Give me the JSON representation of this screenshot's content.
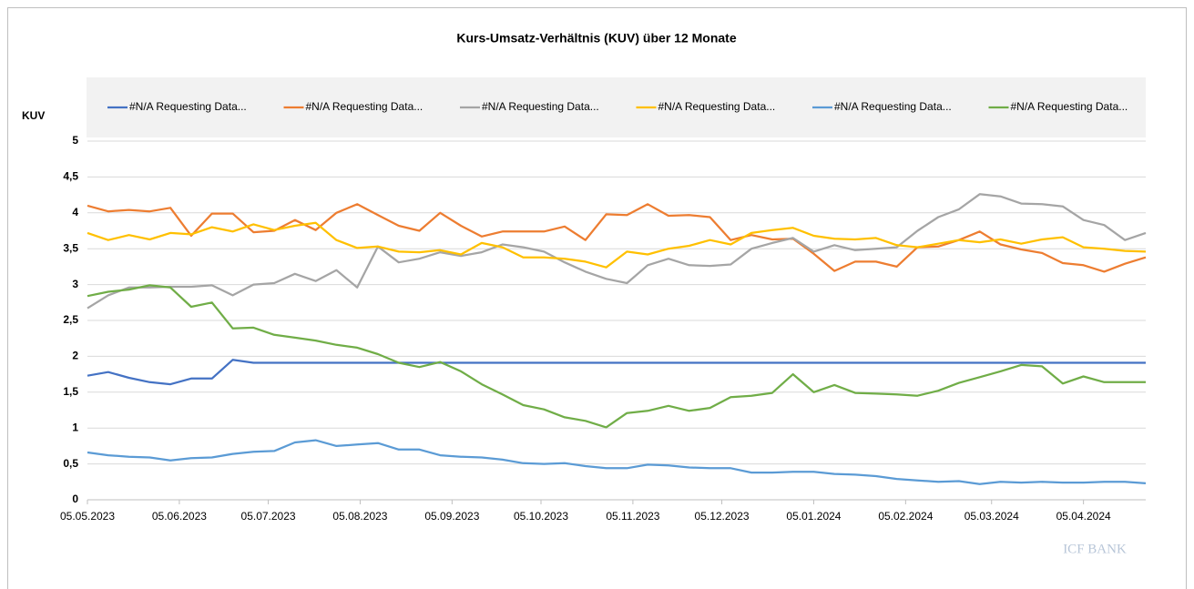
{
  "chart_data": {
    "type": "line",
    "title": "Kurs-Umsatz-Verhältnis (KUV) über 12 Monate",
    "y_label": "KUV",
    "logo": "ICF BANK",
    "x": [
      "2023-05-05",
      "2023-05-12",
      "2023-05-19",
      "2023-05-26",
      "2023-06-02",
      "2023-06-09",
      "2023-06-16",
      "2023-06-23",
      "2023-06-30",
      "2023-07-07",
      "2023-07-14",
      "2023-07-21",
      "2023-07-28",
      "2023-08-04",
      "2023-08-11",
      "2023-08-18",
      "2023-08-25",
      "2023-09-01",
      "2023-09-08",
      "2023-09-15",
      "2023-09-22",
      "2023-09-29",
      "2023-10-06",
      "2023-10-13",
      "2023-10-20",
      "2023-10-27",
      "2023-11-03",
      "2023-11-10",
      "2023-11-17",
      "2023-11-24",
      "2023-12-01",
      "2023-12-08",
      "2023-12-15",
      "2023-12-22",
      "2023-12-29",
      "2024-01-05",
      "2024-01-12",
      "2024-01-19",
      "2024-01-26",
      "2024-02-02",
      "2024-02-09",
      "2024-02-16",
      "2024-02-23",
      "2024-03-01",
      "2024-03-08",
      "2024-03-15",
      "2024-03-22",
      "2024-03-29",
      "2024-04-05",
      "2024-04-12",
      "2024-04-19",
      "2024-04-26"
    ],
    "xlim": [
      "2023-05-05",
      "2024-04-26"
    ],
    "xticks": [
      {
        "value": "2023-05-05",
        "label": "05.05.2023"
      },
      {
        "value": "2023-06-05",
        "label": "05.06.2023"
      },
      {
        "value": "2023-07-05",
        "label": "05.07.2023"
      },
      {
        "value": "2023-08-05",
        "label": "05.08.2023"
      },
      {
        "value": "2023-09-05",
        "label": "05.09.2023"
      },
      {
        "value": "2023-10-05",
        "label": "05.10.2023"
      },
      {
        "value": "2023-11-05",
        "label": "05.11.2023"
      },
      {
        "value": "2023-12-05",
        "label": "05.12.2023"
      },
      {
        "value": "2024-01-05",
        "label": "05.01.2024"
      },
      {
        "value": "2024-02-05",
        "label": "05.02.2024"
      },
      {
        "value": "2024-03-05",
        "label": "05.03.2024"
      },
      {
        "value": "2024-04-05",
        "label": "05.04.2024"
      }
    ],
    "ylim": [
      0,
      5
    ],
    "yticks": [
      0,
      {
        "value": 0.5,
        "label": "0,5"
      },
      1,
      {
        "value": 1.5,
        "label": "1,5"
      },
      2,
      {
        "value": 2.5,
        "label": "2,5"
      },
      3,
      {
        "value": 3.5,
        "label": "3,5"
      },
      4,
      {
        "value": 4.5,
        "label": "4,5"
      },
      5
    ],
    "grid": true,
    "legend": "top",
    "series": [
      {
        "name": "#N/A Requesting Data...",
        "color": "#4472c4",
        "values": [
          1.73,
          1.78,
          1.7,
          1.64,
          1.61,
          1.69,
          1.69,
          1.95,
          1.91,
          1.91,
          1.91,
          1.91,
          1.91,
          1.91,
          1.91,
          1.91,
          1.91,
          1.91,
          1.91,
          1.91,
          1.91,
          1.91,
          1.91,
          1.91,
          1.91,
          1.91,
          1.91,
          1.91,
          1.91,
          1.91,
          1.91,
          1.91,
          1.91,
          1.91,
          1.91,
          1.91,
          1.91,
          1.91,
          1.91,
          1.91,
          1.91,
          1.91,
          1.91,
          1.91,
          1.91,
          1.91,
          1.91,
          1.91,
          1.91,
          1.91,
          1.91,
          1.91
        ]
      },
      {
        "name": "#N/A Requesting Data...",
        "color": "#ed7d31",
        "values": [
          4.1,
          4.02,
          4.04,
          4.02,
          4.07,
          3.68,
          3.99,
          3.99,
          3.73,
          3.75,
          3.9,
          3.76,
          4.0,
          4.12,
          3.97,
          3.82,
          3.75,
          4.0,
          3.82,
          3.67,
          3.74,
          3.74,
          3.74,
          3.81,
          3.62,
          3.98,
          3.97,
          4.12,
          3.96,
          3.97,
          3.94,
          3.62,
          3.69,
          3.63,
          3.64,
          3.43,
          3.19,
          3.32,
          3.32,
          3.25,
          3.52,
          3.53,
          3.62,
          3.74,
          3.56,
          3.49,
          3.44,
          3.3,
          3.27,
          3.18,
          3.29,
          3.38
        ]
      },
      {
        "name": "#N/A Requesting Data...",
        "color": "#a5a5a5",
        "values": [
          2.67,
          2.85,
          2.96,
          2.96,
          2.97,
          2.97,
          2.99,
          2.85,
          3.0,
          3.02,
          3.15,
          3.05,
          3.2,
          2.96,
          3.53,
          3.31,
          3.36,
          3.45,
          3.4,
          3.45,
          3.56,
          3.52,
          3.46,
          3.31,
          3.18,
          3.08,
          3.02,
          3.27,
          3.36,
          3.27,
          3.26,
          3.28,
          3.5,
          3.58,
          3.65,
          3.46,
          3.55,
          3.48,
          3.5,
          3.52,
          3.75,
          3.94,
          4.05,
          4.26,
          4.23,
          4.13,
          4.12,
          4.09,
          3.9,
          3.83,
          3.62,
          3.72
        ]
      },
      {
        "name": "#N/A Requesting Data...",
        "color": "#ffc000",
        "values": [
          3.72,
          3.62,
          3.69,
          3.63,
          3.72,
          3.7,
          3.8,
          3.74,
          3.84,
          3.76,
          3.82,
          3.86,
          3.62,
          3.51,
          3.53,
          3.46,
          3.45,
          3.48,
          3.42,
          3.58,
          3.52,
          3.38,
          3.38,
          3.36,
          3.32,
          3.24,
          3.46,
          3.42,
          3.5,
          3.54,
          3.62,
          3.56,
          3.72,
          3.76,
          3.79,
          3.68,
          3.64,
          3.63,
          3.65,
          3.55,
          3.52,
          3.57,
          3.62,
          3.59,
          3.63,
          3.57,
          3.63,
          3.66,
          3.52,
          3.5,
          3.47,
          3.46
        ]
      },
      {
        "name": "#N/A Requesting Data...",
        "color": "#5b9bd5",
        "values": [
          0.66,
          0.62,
          0.6,
          0.59,
          0.55,
          0.58,
          0.59,
          0.64,
          0.67,
          0.68,
          0.8,
          0.83,
          0.75,
          0.77,
          0.79,
          0.7,
          0.7,
          0.62,
          0.6,
          0.59,
          0.56,
          0.51,
          0.5,
          0.51,
          0.47,
          0.44,
          0.44,
          0.49,
          0.48,
          0.45,
          0.44,
          0.44,
          0.38,
          0.38,
          0.39,
          0.39,
          0.36,
          0.35,
          0.33,
          0.29,
          0.27,
          0.25,
          0.26,
          0.22,
          0.25,
          0.24,
          0.25,
          0.24,
          0.24,
          0.25,
          0.25,
          0.23
        ]
      },
      {
        "name": "#N/A Requesting Data...",
        "color": "#70ad47",
        "values": [
          2.84,
          2.9,
          2.93,
          2.99,
          2.96,
          2.69,
          2.75,
          2.39,
          2.4,
          2.3,
          2.26,
          2.22,
          2.16,
          2.12,
          2.03,
          1.91,
          1.85,
          1.92,
          1.79,
          1.61,
          1.47,
          1.32,
          1.26,
          1.15,
          1.1,
          1.01,
          1.21,
          1.24,
          1.31,
          1.24,
          1.28,
          1.43,
          1.45,
          1.49,
          1.75,
          1.5,
          1.6,
          1.49,
          1.48,
          1.47,
          1.45,
          1.52,
          1.63,
          1.71,
          1.79,
          1.88,
          1.86,
          1.62,
          1.72,
          1.64,
          1.64,
          1.64
        ]
      }
    ]
  }
}
